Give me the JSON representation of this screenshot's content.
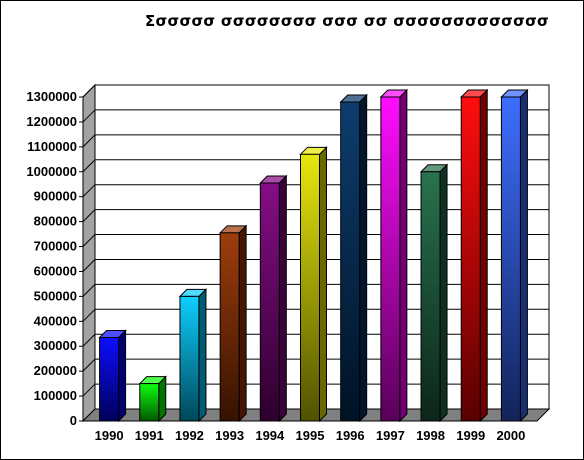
{
  "chart_data": {
    "type": "bar",
    "title": "Σσσσσσ σσσσσσσσ σσσ σσ σσσσσσσσσσσσσ",
    "xlabel": "",
    "ylabel": "",
    "categories": [
      "1990",
      "1991",
      "1992",
      "1993",
      "1994",
      "1995",
      "1996",
      "1997",
      "1998",
      "1999",
      "2000"
    ],
    "values": [
      335000,
      150000,
      500000,
      755000,
      955000,
      1070000,
      1280000,
      1300000,
      1000000,
      1300000,
      1300000
    ],
    "ylim": [
      0,
      1300000
    ],
    "yticks": [
      "0",
      "100000",
      "200000",
      "300000",
      "400000",
      "500000",
      "600000",
      "700000",
      "800000",
      "900000",
      "1000000",
      "1100000",
      "1200000",
      "1300000"
    ],
    "grid": true,
    "legend": "none",
    "three_d": true,
    "bar_colors": [
      "#0000ff",
      "#00ff00",
      "#00ccff",
      "#993300",
      "#800080",
      "#e6e600",
      "#003366",
      "#ff00ff",
      "#1e6b46",
      "#ff0000",
      "#3366ff"
    ],
    "wall_color": "#c0c0c0"
  }
}
